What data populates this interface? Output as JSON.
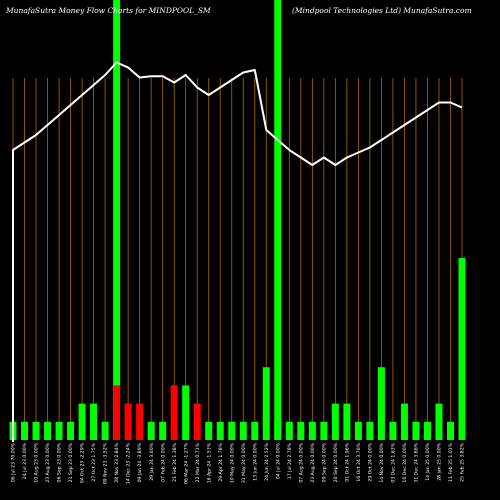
{
  "chart_data": {
    "type": "bar",
    "title_left": "MunafaSutra  Money Flow  Charts for MINDPOOL_SM",
    "title_right": "(Mindpool Technologies Ltd) MunafaSutra.com",
    "categories": [
      "06 Jul 23 70.00%",
      "24 Jul 23 0.00%",
      "10 Aug 23 0.00%",
      "23 Aug 23 0.00%",
      "06 Sep 23 0.00%",
      "21 Sep 23 0.00%",
      "04 Oct 23 -2.29%",
      "27 Oct 23 1.75%",
      "09 Nov 23 -3.52%",
      "28 Nov 23 2.84%",
      "14 Dec 23 -2.24%",
      "09 Jan 24 -3.89%",
      "29 Jan 24 3.60%",
      "07 Feb 24 0.00%",
      "21 Feb 24 1.38%",
      "06 Mar 24 -1.27%",
      "22 Mar 24 0.71%",
      "16 Apr 24 -1.53%",
      "29 Apr 24 1.78%",
      "10 May 24 0.00%",
      "31 May 24 0.00%",
      "13 Jun 24 0.00%",
      "24 Jun 24 2.52%",
      "04 Jul 24 0.00%",
      "17 Jul 24 2.78%",
      "07 Aug 24 0.00%",
      "23 Aug 24 0.00%",
      "09 Sep 24 0.00%",
      "20 Sep 24 0.00%",
      "01 Oct 24 1.96%",
      "16 Oct 24 3.76%",
      "29 Oct 24 0.00%",
      "14 Nov 24 0.00%",
      "03 Dec 24 1.63%",
      "16 Dec 24 0.00%",
      "31 Dec 24 3.86%",
      "14 Jan 25 0.00%",
      "28 Jan 25 0.00%",
      "11 Feb 25 1.01%",
      "25 Feb 25 3.82%"
    ],
    "bar_heights": [
      1,
      1,
      1,
      1,
      1,
      1,
      2,
      2,
      1,
      3,
      2,
      2,
      1,
      1,
      3,
      3,
      2,
      1,
      1,
      1,
      1,
      1,
      4,
      1,
      1,
      1,
      1,
      1,
      2,
      2,
      1,
      1,
      4,
      1,
      2,
      1,
      1,
      2,
      1,
      10
    ],
    "bar_colors": [
      "#00ff00",
      "#00ff00",
      "#00ff00",
      "#00ff00",
      "#00ff00",
      "#00ff00",
      "#00ff00",
      "#00ff00",
      "#00ff00",
      "#ff0000",
      "#ff0000",
      "#ff0000",
      "#00ff00",
      "#00ff00",
      "#ff0000",
      "#00ff00",
      "#ff0000",
      "#00ff00",
      "#00ff00",
      "#00ff00",
      "#00ff00",
      "#00ff00",
      "#00ff00",
      "#00ff00",
      "#00ff00",
      "#00ff00",
      "#00ff00",
      "#00ff00",
      "#00ff00",
      "#00ff00",
      "#00ff00",
      "#00ff00",
      "#00ff00",
      "#00ff00",
      "#00ff00",
      "#00ff00",
      "#00ff00",
      "#00ff00",
      "#00ff00",
      "#00ff00"
    ],
    "price_line": [
      64,
      67,
      70,
      74,
      78,
      82,
      86,
      90,
      94,
      99,
      97,
      93,
      93.5,
      93.5,
      91,
      94,
      89,
      86,
      89,
      92,
      95,
      96,
      72,
      68,
      64,
      61,
      58,
      61,
      58,
      61,
      63,
      65,
      68,
      71,
      74,
      77,
      80,
      83,
      83,
      81
    ],
    "price_range": [
      0,
      100
    ],
    "highlight_columns": [
      9,
      23
    ],
    "colors": {
      "background": "#000000",
      "grid": "#b06a00",
      "line": "#ffffff",
      "up": "#00ff00",
      "down": "#ff0000",
      "highlight": "#00ff00"
    }
  }
}
